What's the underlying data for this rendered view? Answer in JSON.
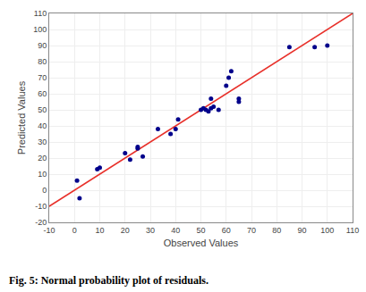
{
  "chart_data": {
    "type": "scatter",
    "xlabel": "Observed Values",
    "ylabel": "Predicted Values",
    "annotations": [
      "Fig. 5: Normal probability plot of residuals."
    ],
    "series": [
      {
        "type": "line",
        "color": "#E8302A",
        "x": [
          -10,
          110
        ],
        "values": [
          -10,
          110
        ]
      },
      {
        "type": "scatter",
        "color": "#00008B",
        "x": [
          1,
          2,
          9,
          10,
          20,
          22,
          25,
          25,
          27,
          33,
          38,
          40,
          41,
          50,
          51,
          52,
          53,
          54,
          54,
          55,
          57,
          60,
          61,
          62,
          65,
          65,
          85,
          95,
          100
        ],
        "values": [
          6,
          -5,
          13,
          14,
          23,
          19,
          26,
          27,
          21,
          38,
          35,
          38,
          44,
          50,
          51,
          50,
          49,
          51,
          57,
          52,
          50,
          65,
          70,
          74,
          55,
          57,
          89,
          89,
          90
        ]
      }
    ],
    "xlim": [
      -10,
      110
    ],
    "ylim": [
      -20,
      110
    ],
    "xticks": [
      -10,
      0,
      10,
      20,
      30,
      40,
      50,
      60,
      70,
      80,
      90,
      100,
      110
    ],
    "yticks": [
      -20,
      -10,
      0,
      10,
      20,
      30,
      40,
      50,
      60,
      70,
      80,
      90,
      100,
      110
    ],
    "grid": true
  }
}
